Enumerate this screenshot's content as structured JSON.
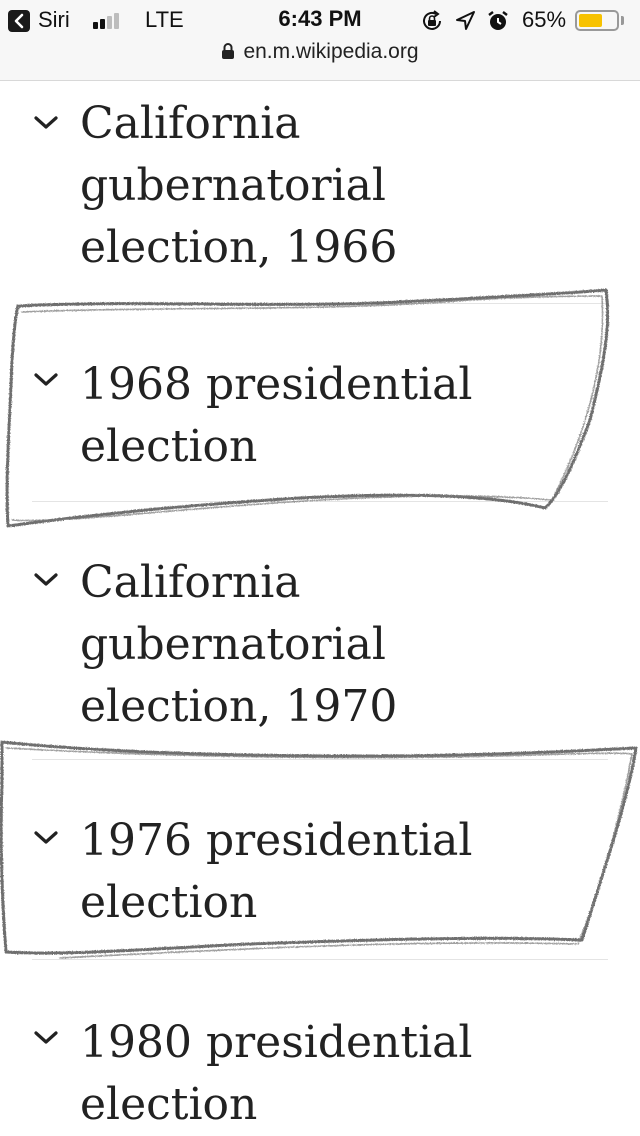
{
  "status_bar": {
    "back_label": "Siri",
    "carrier": "LTE",
    "time": "6:43 PM",
    "battery_percent": "65%",
    "battery_level": 0.65,
    "battery_color": "#f7c200",
    "icons": [
      "rotation-lock-icon",
      "location-icon",
      "alarm-icon"
    ]
  },
  "browser": {
    "url": "en.m.wikipedia.org",
    "secure": true
  },
  "sections": [
    {
      "title": "California gubernatorial election, 1966",
      "expanded": false
    },
    {
      "title": "1968 presidential election",
      "expanded": false,
      "highlighted": true
    },
    {
      "title": "California gubernatorial election, 1970",
      "expanded": false
    },
    {
      "title": "1976 presidential election",
      "expanded": false,
      "highlighted": true
    },
    {
      "title": "1980 presidential election",
      "expanded": false
    }
  ]
}
